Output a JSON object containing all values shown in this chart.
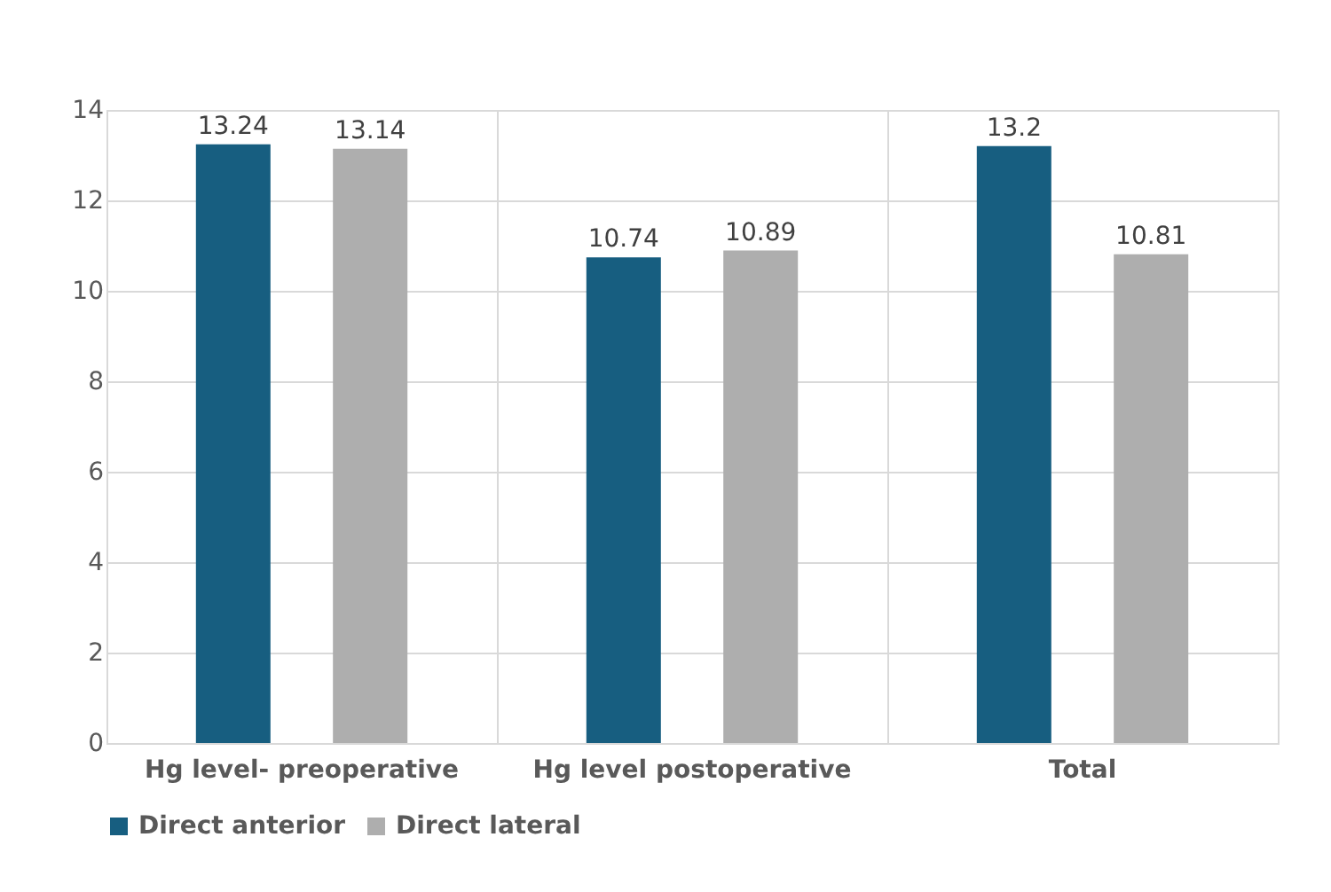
{
  "chart_data": {
    "type": "bar",
    "categories": [
      "Hg level- preoperative",
      "Hg level  postoperative",
      "Total"
    ],
    "series": [
      {
        "name": "Direct anterior",
        "color": "#175e80",
        "values": [
          13.24,
          10.74,
          13.2
        ]
      },
      {
        "name": "Direct lateral",
        "color": "#aeaeae",
        "values": [
          13.14,
          10.89,
          10.81
        ]
      }
    ],
    "ylim": [
      0,
      14
    ],
    "yticks": [
      0,
      2,
      4,
      6,
      8,
      10,
      12,
      14
    ],
    "grid": true,
    "legend": "bottom",
    "data_labels": true
  }
}
